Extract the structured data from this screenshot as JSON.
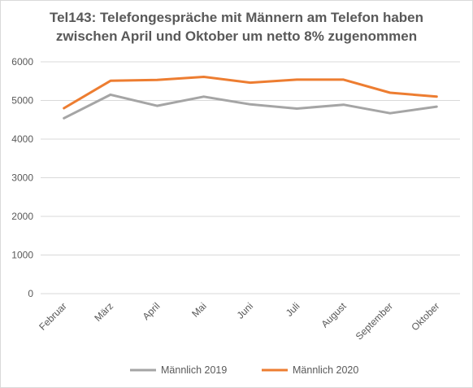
{
  "chart_data": {
    "type": "line",
    "title_line1": "Tel143: Telefongespräche mit Männern am Telefon haben",
    "title_line2": "zwischen April und Oktober um netto 8% zugenommen",
    "categories": [
      "Februar",
      "März",
      "April",
      "Mai",
      "Juni",
      "Juli",
      "August",
      "September",
      "Oktober"
    ],
    "series": [
      {
        "name": "Männlich 2019",
        "color": "#a5a5a5",
        "values": [
          4540,
          5150,
          4860,
          5100,
          4900,
          4790,
          4890,
          4670,
          4840
        ]
      },
      {
        "name": "Männlich 2020",
        "color": "#ed7d31",
        "values": [
          4800,
          5510,
          5530,
          5610,
          5460,
          5540,
          5540,
          5200,
          5100
        ]
      }
    ],
    "ylim": [
      0,
      6000
    ],
    "yticks": [
      0,
      1000,
      2000,
      3000,
      4000,
      5000,
      6000
    ],
    "grid": true,
    "legend_position": "bottom"
  }
}
